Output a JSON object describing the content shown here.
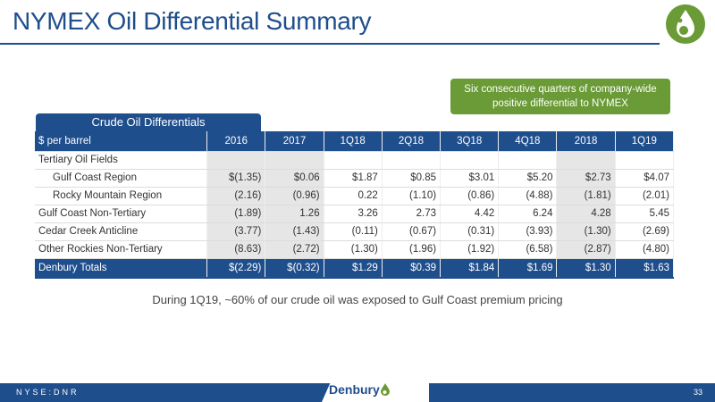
{
  "slide": {
    "title": "NYMEX Oil Differential Summary",
    "callout": "Six consecutive quarters of company-wide positive differential to NYMEX",
    "table_tab": "Crude Oil Differentials",
    "note": "During 1Q19, ~60% of our crude oil was exposed to Gulf Coast premium pricing",
    "footer_ticker": "NYSE:DNR",
    "footer_brand": "Denbury",
    "page_number": "33",
    "colors": {
      "primary_blue": "#1f4e8c",
      "callout_green": "#6a9b36",
      "shade_gray": "#e6e6e6"
    },
    "logo_icon": "oil-drop-logo-icon"
  },
  "table": {
    "headers": [
      "$ per barrel",
      "2016",
      "2017",
      "1Q18",
      "2Q18",
      "3Q18",
      "4Q18",
      "2018",
      "1Q19"
    ],
    "rows": [
      {
        "label": "Tertiary Oil Fields",
        "values": [
          "",
          "",
          "",
          "",
          "",
          "",
          "",
          ""
        ]
      },
      {
        "label": "Gulf Coast Region",
        "values": [
          "$(1.35)",
          "$0.06",
          "$1.87",
          "$0.85",
          "$3.01",
          "$5.20",
          "$2.73",
          "$4.07"
        ]
      },
      {
        "label": "Rocky Mountain Region",
        "values": [
          "(2.16)",
          "(0.96)",
          "0.22",
          "(1.10)",
          "(0.86)",
          "(4.88)",
          "(1.81)",
          "(2.01)"
        ]
      },
      {
        "label": "Gulf Coast Non-Tertiary",
        "values": [
          "(1.89)",
          "1.26",
          "3.26",
          "2.73",
          "4.42",
          "6.24",
          "4.28",
          "5.45"
        ]
      },
      {
        "label": "Cedar Creek Anticline",
        "values": [
          "(3.77)",
          "(1.43)",
          "(0.11)",
          "(0.67)",
          "(0.31)",
          "(3.93)",
          "(1.30)",
          "(2.69)"
        ]
      },
      {
        "label": "Other Rockies Non-Tertiary",
        "values": [
          "(8.63)",
          "(2.72)",
          "(1.30)",
          "(1.96)",
          "(1.92)",
          "(6.58)",
          "(2.87)",
          "(4.80)"
        ]
      }
    ],
    "total": {
      "label": "Denbury Totals",
      "values": [
        "$(2.29)",
        "$(0.32)",
        "$1.29",
        "$0.39",
        "$1.84",
        "$1.69",
        "$1.30",
        "$1.63"
      ]
    }
  }
}
